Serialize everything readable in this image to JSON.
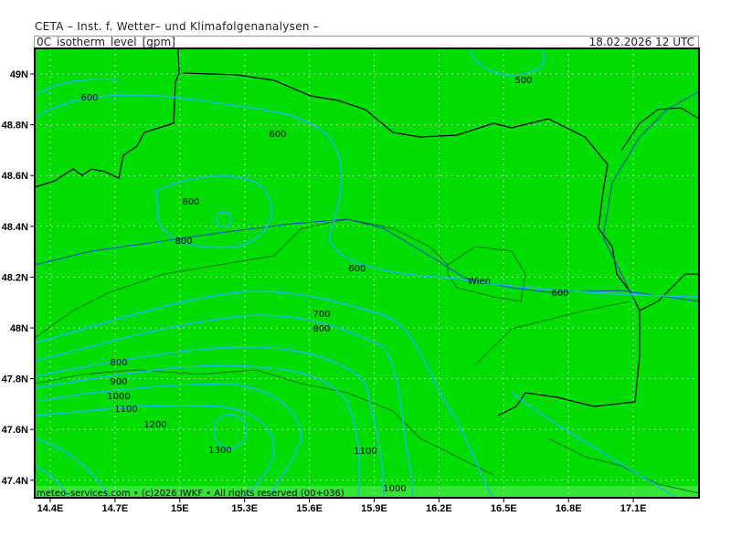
{
  "header": {
    "title": "CETA – Inst. f. Wetter– und Klimafolgenanalysen –"
  },
  "bar": {
    "variable": "0C_isotherm_level_[gpm]",
    "datetime": "18.02.2026  12 UTC"
  },
  "footer": {
    "credit": "meteo–services.com • (c)2026 IWKF • All rights reserved (00+036)"
  },
  "axes": {
    "lon_ticks": [
      "14.4E",
      "14.7E",
      "15E",
      "15.3E",
      "15.6E",
      "15.9E",
      "16.2E",
      "16.5E",
      "16.8E",
      "17.1E"
    ],
    "lat_ticks": [
      "49N",
      "48.8N",
      "48.6N",
      "48.4N",
      "48.2N",
      "48N",
      "47.8N",
      "47.6N",
      "47.4N"
    ]
  },
  "map": {
    "city_label": "Wien",
    "contour_labels": [
      "500",
      "600",
      "600",
      "600",
      "600",
      "800",
      "800",
      "700",
      "800",
      "800",
      "900",
      "1000",
      "1100",
      "1200",
      "1300",
      "1100",
      "1000"
    ],
    "colors": {
      "land": "#00dd00",
      "contour": "#20b8d8",
      "border": "#000000",
      "river": "#2244cc",
      "grid": "#c8c8c8",
      "footer_band": "#33e633"
    }
  }
}
